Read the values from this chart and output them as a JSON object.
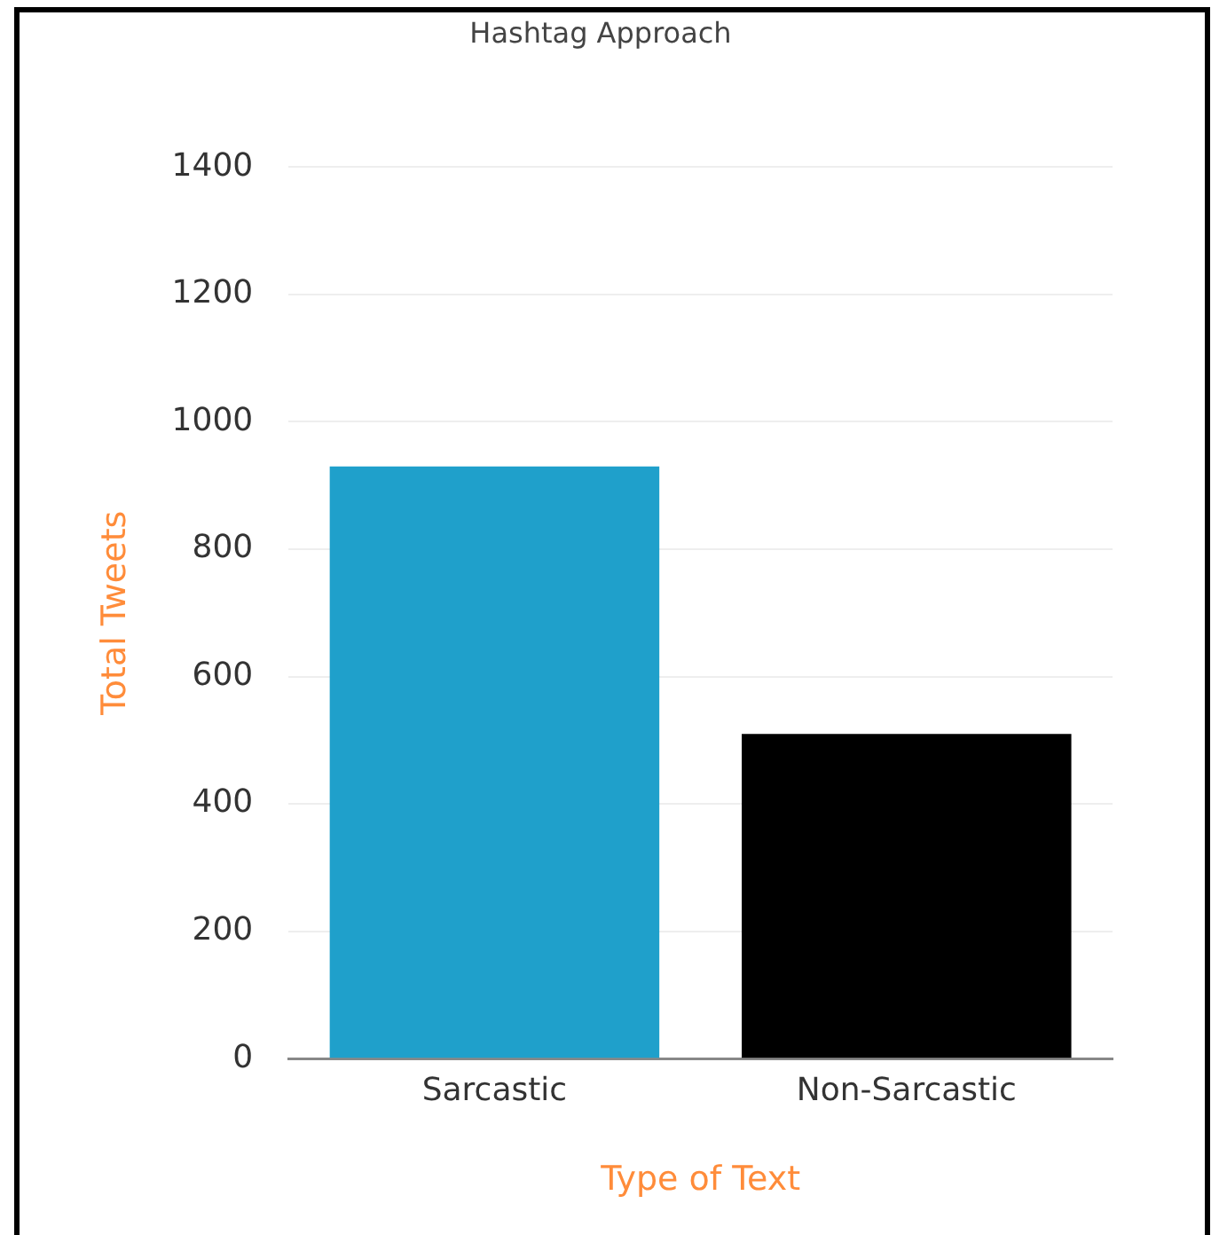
{
  "chart_data": {
    "type": "bar",
    "title": "Hashtag Approach",
    "xlabel": "Type of Text",
    "ylabel": "Total Tweets",
    "categories": [
      "Sarcastic",
      "Non-Sarcastic"
    ],
    "values": [
      930,
      510
    ],
    "colors": [
      "#1fa0cb",
      "#000000"
    ],
    "ylim": [
      0,
      1400
    ],
    "yticks": [
      0,
      200,
      400,
      600,
      800,
      1000,
      1200,
      1400
    ],
    "grid": "y"
  }
}
